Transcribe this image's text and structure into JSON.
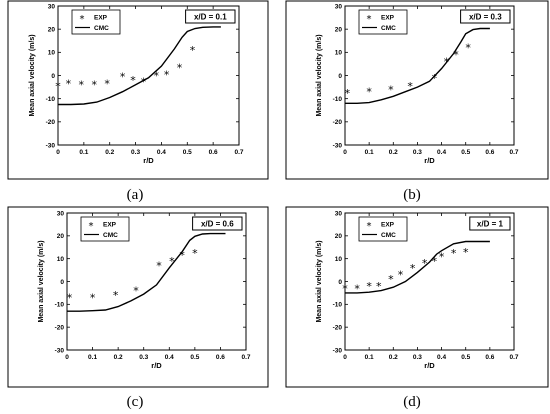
{
  "chart_data": [
    {
      "type": "line",
      "panel_label": "(a)",
      "annotation": "x/D = 0.1",
      "xlabel": "r/D",
      "ylabel": "Mean axial velocity (m/s)",
      "xlim": [
        0,
        0.7
      ],
      "ylim": [
        -30,
        30
      ],
      "xticks": [
        "0",
        "0.1",
        "0.2",
        "0.3",
        "0.4",
        "0.5",
        "0.6",
        "0.7"
      ],
      "yticks": [
        "30",
        "20",
        "10",
        "0",
        "-10",
        "-20",
        "-30"
      ],
      "legend": {
        "position": "top-left",
        "entries": [
          "EXP",
          "CMC"
        ]
      },
      "series": [
        {
          "name": "EXP",
          "style": "markers",
          "x": [
            0.0,
            0.04,
            0.09,
            0.14,
            0.19,
            0.25,
            0.29,
            0.33,
            0.38,
            0.42,
            0.47,
            0.52
          ],
          "y": [
            -4.5,
            -3.5,
            -3.8,
            -3.8,
            -3.5,
            -0.5,
            -2.0,
            -2.5,
            0.0,
            0.5,
            3.5,
            11.0
          ]
        },
        {
          "name": "CMC",
          "style": "line",
          "x": [
            0.0,
            0.05,
            0.1,
            0.15,
            0.2,
            0.25,
            0.3,
            0.35,
            0.4,
            0.45,
            0.48,
            0.5,
            0.53,
            0.56,
            0.6,
            0.63
          ],
          "y": [
            -12.5,
            -12.5,
            -12.3,
            -11.5,
            -9.5,
            -7.0,
            -4.0,
            -1.0,
            4.0,
            11.5,
            16.5,
            19.0,
            20.3,
            20.8,
            21.0,
            21.0
          ]
        }
      ]
    },
    {
      "type": "line",
      "panel_label": "(b)",
      "annotation": "x/D = 0.3",
      "xlabel": "r/D",
      "ylabel": "Mean axial velocity (m/s)",
      "xlim": [
        0,
        0.7
      ],
      "ylim": [
        -30,
        30
      ],
      "xticks": [
        "0",
        "0.1",
        "0.2",
        "0.3",
        "0.4",
        "0.5",
        "0.6",
        "0.7"
      ],
      "yticks": [
        "30",
        "20",
        "10",
        "0",
        "-10",
        "-20",
        "-30"
      ],
      "legend": {
        "position": "top-left",
        "entries": [
          "EXP",
          "CMC"
        ]
      },
      "series": [
        {
          "name": "EXP",
          "style": "markers",
          "x": [
            0.01,
            0.1,
            0.19,
            0.27,
            0.37,
            0.42,
            0.46,
            0.51
          ],
          "y": [
            -7.5,
            -7.0,
            -6.0,
            -4.5,
            -1.0,
            6.0,
            9.0,
            12.0
          ]
        },
        {
          "name": "CMC",
          "style": "line",
          "x": [
            0.0,
            0.05,
            0.1,
            0.15,
            0.2,
            0.25,
            0.3,
            0.35,
            0.4,
            0.45,
            0.48,
            0.5,
            0.53,
            0.56,
            0.6
          ],
          "y": [
            -12.0,
            -12.0,
            -11.7,
            -10.5,
            -9.0,
            -7.0,
            -5.0,
            -2.5,
            3.0,
            9.5,
            14.5,
            18.0,
            19.8,
            20.3,
            20.3
          ]
        }
      ]
    },
    {
      "type": "line",
      "panel_label": "(c)",
      "annotation": "x/D = 0.6",
      "xlabel": "r/D",
      "ylabel": "Mean axial velocity (m/s)",
      "xlim": [
        0,
        0.7
      ],
      "ylim": [
        -30,
        30
      ],
      "xticks": [
        "0",
        "0.1",
        "0.2",
        "0.3",
        "0.4",
        "0.5",
        "0.6",
        "0.7"
      ],
      "yticks": [
        "30",
        "20",
        "10",
        "0",
        "-10",
        "-20",
        "-30"
      ],
      "legend": {
        "position": "top-left",
        "entries": [
          "EXP",
          "CMC"
        ]
      },
      "series": [
        {
          "name": "EXP",
          "style": "markers",
          "x": [
            0.01,
            0.1,
            0.19,
            0.27,
            0.36,
            0.41,
            0.45,
            0.5
          ],
          "y": [
            -7.0,
            -7.0,
            -6.0,
            -4.0,
            7.0,
            9.0,
            11.5,
            12.5
          ]
        },
        {
          "name": "CMC",
          "style": "line",
          "x": [
            0.0,
            0.05,
            0.1,
            0.15,
            0.2,
            0.25,
            0.3,
            0.35,
            0.4,
            0.45,
            0.48,
            0.5,
            0.53,
            0.56,
            0.62
          ],
          "y": [
            -13.0,
            -13.0,
            -12.8,
            -12.5,
            -11.0,
            -8.5,
            -5.5,
            -1.5,
            6.0,
            13.0,
            18.0,
            19.8,
            20.8,
            21.0,
            21.0
          ]
        }
      ]
    },
    {
      "type": "line",
      "panel_label": "(d)",
      "annotation": "x/D = 1",
      "xlabel": "r/D",
      "ylabel": "Mean axial velocity (m/s)",
      "xlim": [
        0,
        0.7
      ],
      "ylim": [
        -30,
        30
      ],
      "xticks": [
        "0",
        "0.1",
        "0.2",
        "0.3",
        "0.4",
        "0.5",
        "0.6",
        "0.7"
      ],
      "yticks": [
        "30",
        "20",
        "10",
        "0",
        "-10",
        "-20",
        "-30"
      ],
      "legend": {
        "position": "top-left",
        "entries": [
          "EXP",
          "CMC"
        ]
      },
      "series": [
        {
          "name": "EXP",
          "style": "markers",
          "x": [
            0.0,
            0.05,
            0.1,
            0.14,
            0.19,
            0.23,
            0.28,
            0.33,
            0.37,
            0.4,
            0.45,
            0.5
          ],
          "y": [
            -3.0,
            -3.0,
            -2.0,
            -2.0,
            1.0,
            3.0,
            6.0,
            8.0,
            9.0,
            11.0,
            12.5,
            13.0
          ]
        },
        {
          "name": "CMC",
          "style": "line",
          "x": [
            0.0,
            0.05,
            0.1,
            0.15,
            0.2,
            0.25,
            0.3,
            0.35,
            0.38,
            0.4,
            0.45,
            0.5,
            0.55,
            0.6
          ],
          "y": [
            -5.0,
            -5.0,
            -4.7,
            -4.0,
            -2.5,
            0.0,
            4.0,
            8.5,
            12.0,
            13.5,
            16.5,
            17.5,
            17.5,
            17.5
          ]
        }
      ]
    }
  ]
}
